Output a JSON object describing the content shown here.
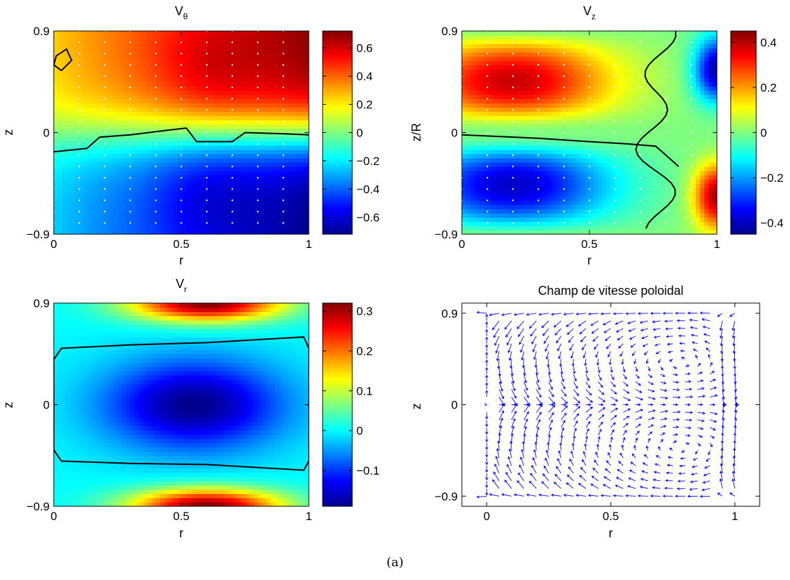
{
  "caption": "(a)",
  "chart_data": [
    {
      "type": "heatmap",
      "title": "V",
      "title_subscript": "θ",
      "xlabel": "r",
      "ylabel": "z",
      "xlim": [
        0,
        1
      ],
      "ylim": [
        -0.9,
        0.9
      ],
      "xticks": [
        0,
        0.5,
        1
      ],
      "xtick_labels": [
        "0",
        "0.5",
        "1"
      ],
      "yticks": [
        -0.9,
        0,
        0.9
      ],
      "ytick_labels": [
        "−0.9",
        "0",
        "0.9"
      ],
      "colorbar": {
        "range": [
          -0.72,
          0.72
        ],
        "ticks": [
          -0.6,
          -0.4,
          -0.2,
          0,
          0.2,
          0.4,
          0.6
        ],
        "tick_labels": [
          "−0.6",
          "−0.4",
          "−0.2",
          "0",
          "0.2",
          "0.4",
          "0.6"
        ]
      },
      "zero_contour": [
        [
          0,
          -0.17
        ],
        [
          0.13,
          -0.14
        ],
        [
          0.18,
          -0.04
        ],
        [
          0.3,
          -0.02
        ],
        [
          0.48,
          0.03
        ],
        [
          0.52,
          0.04
        ],
        [
          0.56,
          -0.08
        ],
        [
          0.7,
          -0.08
        ],
        [
          0.75,
          0.0
        ],
        [
          0.9,
          -0.01
        ],
        [
          1,
          -0.02
        ]
      ],
      "closed_contour": [
        [
          0.01,
          0.68
        ],
        [
          0.05,
          0.74
        ],
        [
          0.07,
          0.64
        ],
        [
          0.03,
          0.55
        ],
        [
          0.0,
          0.6
        ]
      ]
    },
    {
      "type": "heatmap",
      "title": "V",
      "title_subscript": "z",
      "xlabel": "r",
      "ylabel": "z/R",
      "xlim": [
        0,
        1
      ],
      "ylim": [
        -0.9,
        0.9
      ],
      "xticks": [
        0,
        0.5,
        1
      ],
      "xtick_labels": [
        "0",
        "0.5",
        "1"
      ],
      "yticks": [
        -0.9,
        0,
        0.9
      ],
      "ytick_labels": [
        "−0.9",
        "0",
        "0.9"
      ],
      "colorbar": {
        "range": [
          -0.45,
          0.45
        ],
        "ticks": [
          -0.4,
          -0.2,
          0,
          0.2,
          0.4
        ],
        "tick_labels": [
          "−0.4",
          "−0.2",
          "0",
          "0.2",
          "0.4"
        ]
      },
      "zero_contour": [
        [
          0,
          -0.02
        ],
        [
          0.3,
          -0.05
        ],
        [
          0.5,
          -0.08
        ],
        [
          0.65,
          -0.1
        ],
        [
          0.76,
          -0.12
        ],
        [
          0.8,
          -0.2
        ],
        [
          0.85,
          -0.3
        ]
      ]
    },
    {
      "type": "heatmap",
      "title": "V",
      "title_subscript": "r",
      "xlabel": "r",
      "ylabel": "z",
      "xlim": [
        0,
        1
      ],
      "ylim": [
        -0.9,
        0.9
      ],
      "xticks": [
        0,
        0.5,
        1
      ],
      "xtick_labels": [
        "0",
        "0.5",
        "1"
      ],
      "yticks": [
        -0.9,
        0,
        0.9
      ],
      "ytick_labels": [
        "−0.9",
        "0",
        "0.9"
      ],
      "colorbar": {
        "range": [
          -0.19,
          0.32
        ],
        "ticks": [
          -0.1,
          0,
          0.1,
          0.2,
          0.3
        ],
        "tick_labels": [
          "−0.1",
          "0",
          "0.1",
          "0.2",
          "0.3"
        ]
      },
      "zero_contour": [
        [
          0.03,
          0.5
        ],
        [
          0.3,
          0.53
        ],
        [
          0.6,
          0.55
        ],
        [
          0.98,
          0.6
        ],
        [
          1.0,
          0.5
        ],
        [
          1.0,
          -0.5
        ],
        [
          0.98,
          -0.58
        ],
        [
          0.6,
          -0.53
        ],
        [
          0.3,
          -0.52
        ],
        [
          0.03,
          -0.5
        ],
        [
          0,
          -0.4
        ],
        [
          0,
          0.4
        ]
      ]
    },
    {
      "type": "quiver",
      "title": "Champ de vitesse poloidal",
      "xlabel": "r",
      "ylabel": "z",
      "xlim": [
        -0.1,
        1.1
      ],
      "ylim": [
        -1.0,
        1.0
      ],
      "xticks": [
        0,
        0.5,
        1
      ],
      "xtick_labels": [
        "0",
        "0.5",
        "1"
      ],
      "yticks": [
        -0.9,
        0,
        0.9
      ],
      "ytick_labels": [
        "−0.9",
        "0",
        "0.9"
      ],
      "vortex_centers": [
        [
          0.78,
          0.42
        ],
        [
          0.78,
          -0.42
        ]
      ],
      "arrow_color": "#0000ff"
    }
  ]
}
